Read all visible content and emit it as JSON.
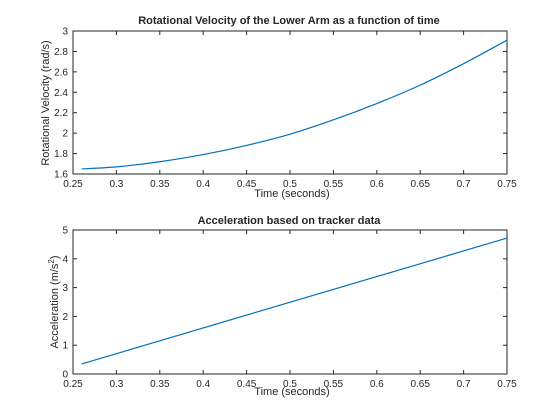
{
  "chart_data": [
    {
      "type": "line",
      "title": "Rotational Velocity of the Lower Arm as a function of time",
      "xlabel": "Time (seconds)",
      "ylabel": "Rotational Velocity (rad/s)",
      "xlim": [
        0.25,
        0.75
      ],
      "ylim": [
        1.6,
        3.0
      ],
      "xticks": [
        0.25,
        0.3,
        0.35,
        0.4,
        0.45,
        0.5,
        0.55,
        0.6,
        0.65,
        0.7,
        0.75
      ],
      "xtick_labels": [
        "0.25",
        "0.3",
        "0.35",
        "0.4",
        "0.45",
        "0.5",
        "0.55",
        "0.6",
        "0.65",
        "0.7",
        "0.75"
      ],
      "yticks": [
        1.6,
        1.8,
        2.0,
        2.2,
        2.4,
        2.6,
        2.8,
        3.0
      ],
      "ytick_labels": [
        "1.6",
        "1.8",
        "2",
        "2.2",
        "2.4",
        "2.6",
        "2.8",
        "3"
      ],
      "grid": false,
      "color": "#0072bd",
      "series": [
        {
          "x": [
            0.26,
            0.3,
            0.35,
            0.4,
            0.45,
            0.5,
            0.55,
            0.6,
            0.65,
            0.7,
            0.75
          ],
          "y": [
            1.65,
            1.67,
            1.72,
            1.79,
            1.88,
            1.99,
            2.13,
            2.29,
            2.47,
            2.68,
            2.91
          ]
        }
      ]
    },
    {
      "type": "line",
      "title": "Acceleration based on tracker data",
      "xlabel": "Time (seconds)",
      "ylabel": "Acceleration (m/s",
      "ylabel_sup": "2",
      "ylabel_end": ")",
      "xlim": [
        0.25,
        0.75
      ],
      "ylim": [
        0,
        5
      ],
      "xticks": [
        0.25,
        0.3,
        0.35,
        0.4,
        0.45,
        0.5,
        0.55,
        0.6,
        0.65,
        0.7,
        0.75
      ],
      "xtick_labels": [
        "0.25",
        "0.3",
        "0.35",
        "0.4",
        "0.45",
        "0.5",
        "0.55",
        "0.6",
        "0.65",
        "0.7",
        "0.75"
      ],
      "yticks": [
        0,
        1,
        2,
        3,
        4,
        5
      ],
      "ytick_labels": [
        "0",
        "1",
        "2",
        "3",
        "4",
        "5"
      ],
      "grid": false,
      "color": "#0072bd",
      "series": [
        {
          "x": [
            0.26,
            0.75
          ],
          "y": [
            0.35,
            4.72
          ]
        }
      ]
    }
  ]
}
